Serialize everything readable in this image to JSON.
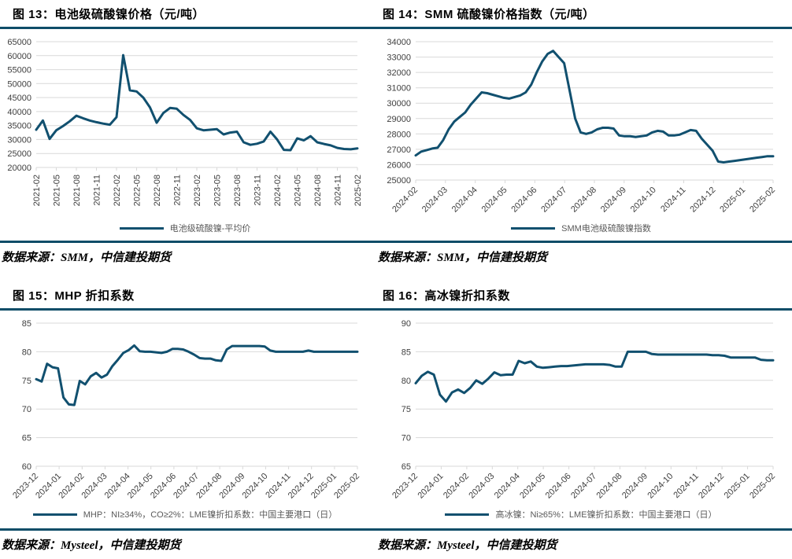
{
  "page": {
    "colors": {
      "accent_rule": "#0e4d68",
      "line": "#11506f",
      "grid": "#d9d9d9",
      "tick_text": "#404040",
      "legend_text": "#595959"
    }
  },
  "chart_data": [
    {
      "type": "line",
      "title": "图 13：电池级硫酸镍价格（元/吨）",
      "legend": [
        "电池级硫酸镍-平均价"
      ],
      "source": "数据来源：SMM，中信建投期货",
      "ylim": [
        20000,
        65000
      ],
      "y_step": 5000,
      "grid": true,
      "legend_position": "bottom",
      "x_tick_rotation": -90,
      "x_tick_labels": [
        "2021-02",
        "2021-05",
        "2021-08",
        "2021-11",
        "2022-02",
        "2022-05",
        "2022-08",
        "2022-11",
        "2023-02",
        "2023-05",
        "2023-08",
        "2023-11",
        "2024-02",
        "2024-05",
        "2024-08",
        "2024-11",
        "2025-02"
      ],
      "x_note": "monthly points from 2021-02 to 2025-02",
      "values": [
        33500,
        36800,
        30200,
        33300,
        34800,
        36500,
        38500,
        37600,
        36800,
        36200,
        35700,
        35300,
        38000,
        60200,
        47600,
        47200,
        45000,
        41500,
        36000,
        39500,
        41300,
        41000,
        38800,
        37000,
        34000,
        33300,
        33500,
        33700,
        31800,
        32500,
        32800,
        29000,
        28100,
        28500,
        29300,
        32800,
        30000,
        26300,
        26200,
        30400,
        29700,
        31200,
        29000,
        28400,
        27900,
        27000,
        26600,
        26500,
        26800
      ]
    },
    {
      "type": "line",
      "title": "图 14：SMM 硫酸镍价格指数（元/吨）",
      "legend": [
        "SMM电池级硫酸镍指数"
      ],
      "source": "数据来源：SMM，中信建投期货",
      "ylim": [
        25000,
        34000
      ],
      "y_step": 1000,
      "grid": true,
      "legend_position": "bottom",
      "x_tick_rotation": -45,
      "x_tick_labels": [
        "2024-02",
        "2024-03",
        "2024-04",
        "2024-05",
        "2024-06",
        "2024-07",
        "2024-08",
        "2024-09",
        "2024-10",
        "2024-11",
        "2024-12",
        "2025-01",
        "2025-02"
      ],
      "x_note": "weekly points from 2024-02 to 2025-02",
      "values": [
        26600,
        26850,
        26950,
        27050,
        27100,
        27600,
        28300,
        28800,
        29100,
        29400,
        29900,
        30300,
        30700,
        30650,
        30550,
        30450,
        30350,
        30300,
        30400,
        30500,
        30700,
        31200,
        32000,
        32700,
        33200,
        33400,
        33000,
        32600,
        30800,
        29000,
        28100,
        28000,
        28100,
        28300,
        28400,
        28400,
        28350,
        27900,
        27850,
        27850,
        27800,
        27850,
        27900,
        28100,
        28200,
        28150,
        27900,
        27900,
        27950,
        28100,
        28250,
        28200,
        27700,
        27300,
        26900,
        26200,
        26150,
        26200,
        26250,
        26300,
        26350,
        26400,
        26450,
        26500,
        26550,
        26550
      ]
    },
    {
      "type": "line",
      "title": "图 15：MHP 折扣系数",
      "legend": [
        "MHP：NI≥34%，CO≥2%：LME镍折扣系数：中国主要港口（日）"
      ],
      "source": "数据来源：Mysteel，中信建投期货",
      "ylim": [
        60,
        85
      ],
      "y_step": 5,
      "grid": true,
      "legend_position": "bottom",
      "x_tick_rotation": -45,
      "x_tick_labels": [
        "2023-12",
        "2024-01",
        "2024-02",
        "2024-03",
        "2024-04",
        "2024-05",
        "2024-06",
        "2024-07",
        "2024-08",
        "2024-09",
        "2024-10",
        "2024-11",
        "2024-12",
        "2025-01",
        "2025-02"
      ],
      "x_note": "daily series from 2023-12 to 2025-02",
      "values": [
        75.2,
        74.8,
        77.9,
        77.3,
        77.1,
        72.0,
        70.8,
        70.7,
        74.9,
        74.3,
        75.7,
        76.3,
        75.5,
        76.0,
        77.5,
        78.6,
        79.8,
        80.3,
        81.1,
        80.1,
        80.0,
        80.0,
        79.9,
        79.8,
        80.0,
        80.5,
        80.5,
        80.4,
        80.0,
        79.5,
        78.9,
        78.8,
        78.8,
        78.5,
        78.4,
        80.4,
        81.0,
        81.0,
        81.0,
        81.0,
        81.0,
        81.0,
        80.9,
        80.2,
        80.0,
        80.0,
        80.0,
        80.0,
        80.0,
        80.0,
        80.2,
        80.0,
        80.0,
        80.0,
        80.0,
        80.0,
        80.0,
        80.0,
        80.0,
        80.0
      ]
    },
    {
      "type": "line",
      "title": "图 16：高冰镍折扣系数",
      "legend": [
        "高冰镍：Ni≥65%：LME镍折扣系数：中国主要港口（日）"
      ],
      "source": "数据来源：Mysteel，中信建投期货",
      "ylim": [
        65,
        90
      ],
      "y_step": 5,
      "grid": true,
      "legend_position": "bottom",
      "x_tick_rotation": -45,
      "x_tick_labels": [
        "2023-12",
        "2024-01",
        "2024-02",
        "2024-03",
        "2024-04",
        "2024-05",
        "2024-06",
        "2024-07",
        "2024-08",
        "2024-09",
        "2024-10",
        "2024-11",
        "2024-12",
        "2025-01",
        "2025-02"
      ],
      "x_note": "daily series from 2023-12 to 2025-02",
      "values": [
        79.5,
        80.8,
        81.5,
        81.0,
        77.5,
        76.3,
        77.9,
        78.4,
        77.8,
        78.7,
        80.0,
        79.4,
        80.3,
        81.4,
        80.9,
        81.0,
        81.0,
        83.4,
        83.0,
        83.3,
        82.4,
        82.2,
        82.3,
        82.4,
        82.5,
        82.5,
        82.6,
        82.7,
        82.8,
        82.8,
        82.8,
        82.8,
        82.7,
        82.4,
        82.4,
        85.0,
        85.0,
        85.0,
        85.0,
        84.6,
        84.5,
        84.5,
        84.5,
        84.5,
        84.5,
        84.5,
        84.5,
        84.5,
        84.5,
        84.4,
        84.4,
        84.3,
        84.0,
        84.0,
        84.0,
        84.0,
        84.0,
        83.6,
        83.5,
        83.5
      ]
    }
  ]
}
